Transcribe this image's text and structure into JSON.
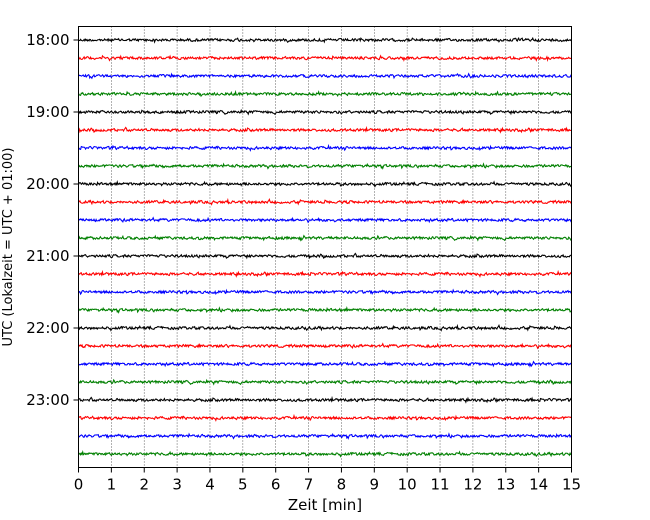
{
  "chart_data": {
    "type": "line",
    "title": "",
    "xlabel": "Zeit  [min]",
    "ylabel": "UTC (Lokalzeit = UTC + 01:00)",
    "xlim": [
      0,
      15
    ],
    "x_ticks": [
      "0",
      "1",
      "2",
      "3",
      "4",
      "5",
      "6",
      "7",
      "8",
      "9",
      "10",
      "11",
      "12",
      "13",
      "14",
      "15"
    ],
    "y_tick_labels": [
      "18:00",
      "19:00",
      "20:00",
      "21:00",
      "22:00",
      "23:00"
    ],
    "row_interval_minutes": 15,
    "rows_start": "18:00",
    "rows_end": "23:45",
    "grid": "vertical dotted at each minute",
    "trace_colors": [
      "#000000",
      "#ff0000",
      "#0000ff",
      "#008000"
    ],
    "traces": [
      {
        "start": "18:00",
        "color": "#000000"
      },
      {
        "start": "18:15",
        "color": "#ff0000"
      },
      {
        "start": "18:30",
        "color": "#0000ff"
      },
      {
        "start": "18:45",
        "color": "#008000"
      },
      {
        "start": "19:00",
        "color": "#000000"
      },
      {
        "start": "19:15",
        "color": "#ff0000"
      },
      {
        "start": "19:30",
        "color": "#0000ff"
      },
      {
        "start": "19:45",
        "color": "#008000"
      },
      {
        "start": "20:00",
        "color": "#000000"
      },
      {
        "start": "20:15",
        "color": "#ff0000"
      },
      {
        "start": "20:30",
        "color": "#0000ff"
      },
      {
        "start": "20:45",
        "color": "#008000"
      },
      {
        "start": "21:00",
        "color": "#000000"
      },
      {
        "start": "21:15",
        "color": "#ff0000"
      },
      {
        "start": "21:30",
        "color": "#0000ff"
      },
      {
        "start": "21:45",
        "color": "#008000"
      },
      {
        "start": "22:00",
        "color": "#000000"
      },
      {
        "start": "22:15",
        "color": "#ff0000"
      },
      {
        "start": "22:30",
        "color": "#0000ff"
      },
      {
        "start": "22:45",
        "color": "#008000"
      },
      {
        "start": "23:00",
        "color": "#000000"
      },
      {
        "start": "23:15",
        "color": "#ff0000"
      },
      {
        "start": "23:30",
        "color": "#0000ff"
      },
      {
        "start": "23:45",
        "color": "#008000"
      }
    ]
  }
}
